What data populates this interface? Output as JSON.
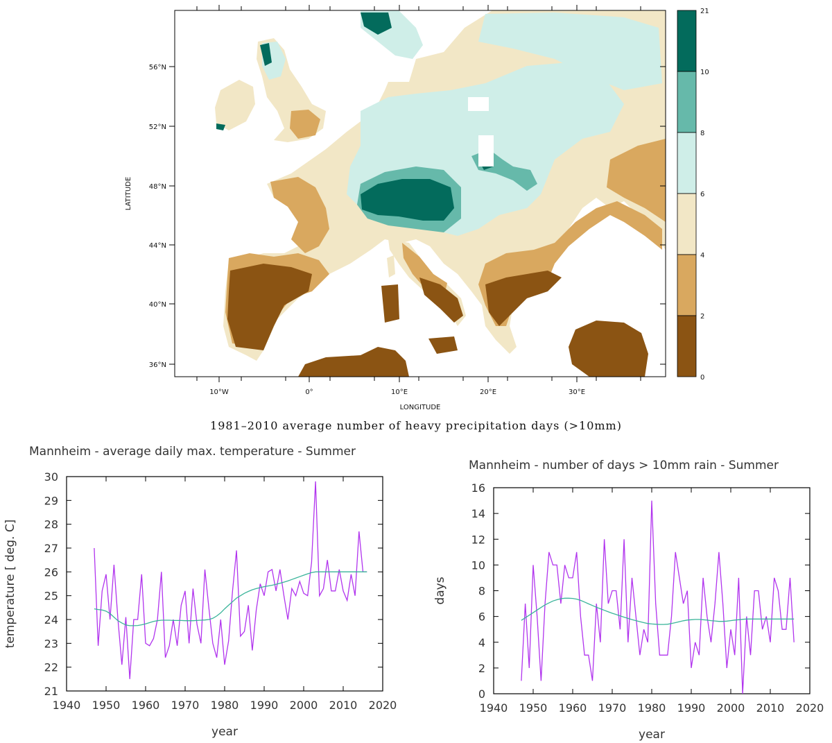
{
  "colors": {
    "dark_brown": "#8b5413",
    "brown": "#d9a85f",
    "cream": "#f2e7c6",
    "pale_teal": "#cfeee8",
    "teal": "#66b9aa",
    "mid_teal": "#2e9c8a",
    "dark_teal": "#036b5c",
    "temp_line": "#b134ee",
    "smooth_line": "#3ab49a"
  },
  "map": {
    "caption": "1981–2010 average number of heavy precipitation days (>10mm)",
    "xlabel": "LONGITUDE",
    "ylabel": "LATITUDE",
    "lat_ticks": [
      "56°N",
      "52°N",
      "48°N",
      "44°N",
      "40°N",
      "36°N"
    ],
    "lon_ticks": [
      "10°W",
      "0°",
      "10°E",
      "20°E",
      "30°E"
    ],
    "colorbar_levels": [
      "21",
      "10",
      "8",
      "6",
      "4",
      "2",
      "0"
    ]
  },
  "chart_data": [
    {
      "type": "line",
      "title": "Mannheim - average daily max. temperature - Summer",
      "xlabel": "year",
      "ylabel": "temperature [ deg. C]",
      "xlim": [
        1940,
        2020
      ],
      "ylim": [
        21,
        30
      ],
      "xticks": [
        "1940",
        "1950",
        "1960",
        "1970",
        "1980",
        "1990",
        "2000",
        "2010",
        "2020"
      ],
      "yticks": [
        "21",
        "22",
        "23",
        "24",
        "25",
        "26",
        "27",
        "28",
        "29",
        "30"
      ],
      "x": [
        1947,
        1948,
        1949,
        1950,
        1951,
        1952,
        1953,
        1954,
        1955,
        1956,
        1957,
        1958,
        1959,
        1960,
        1961,
        1962,
        1963,
        1964,
        1965,
        1966,
        1967,
        1968,
        1969,
        1970,
        1971,
        1972,
        1973,
        1974,
        1975,
        1976,
        1977,
        1978,
        1979,
        1980,
        1981,
        1982,
        1983,
        1984,
        1985,
        1986,
        1987,
        1988,
        1989,
        1990,
        1991,
        1992,
        1993,
        1994,
        1995,
        1996,
        1997,
        1998,
        1999,
        2000,
        2001,
        2002,
        2003,
        2004,
        2005,
        2006,
        2007,
        2008,
        2009,
        2010,
        2011,
        2012,
        2013,
        2014,
        2015,
        2016
      ],
      "series": [
        {
          "name": "Summer average daily max. temperature",
          "values": [
            27.0,
            22.9,
            25.2,
            25.9,
            24.0,
            26.3,
            24.0,
            22.1,
            24.1,
            21.5,
            24.0,
            24.0,
            25.9,
            23.0,
            22.9,
            23.2,
            24.0,
            26.0,
            22.4,
            22.9,
            24.0,
            22.9,
            24.6,
            25.2,
            23.0,
            25.3,
            23.8,
            23.0,
            26.1,
            24.5,
            23.0,
            22.4,
            24.0,
            22.1,
            23.1,
            25.2,
            26.9,
            23.3,
            23.5,
            24.6,
            22.7,
            24.4,
            25.5,
            25.0,
            26.0,
            26.1,
            25.2,
            26.1,
            25.0,
            24.0,
            25.3,
            25.0,
            25.6,
            25.1,
            25.0,
            26.4,
            29.8,
            25.0,
            25.3,
            26.5,
            25.2,
            25.2,
            26.1,
            25.2,
            24.8,
            25.9,
            25.0,
            27.7,
            26.0,
            26.0
          ]
        },
        {
          "name": "smoothed trend",
          "values": [
            24.45,
            24.42,
            24.4,
            24.35,
            24.25,
            24.1,
            23.95,
            23.85,
            23.77,
            23.74,
            23.74,
            23.75,
            23.78,
            23.82,
            23.87,
            23.92,
            23.95,
            23.97,
            23.97,
            23.97,
            23.96,
            23.96,
            23.96,
            23.95,
            23.95,
            23.95,
            23.96,
            23.97,
            23.98,
            24.0,
            24.05,
            24.15,
            24.28,
            24.45,
            24.6,
            24.75,
            24.9,
            25.0,
            25.1,
            25.18,
            25.25,
            25.3,
            25.34,
            25.38,
            25.41,
            25.44,
            25.48,
            25.52,
            25.57,
            25.62,
            25.68,
            25.74,
            25.8,
            25.86,
            25.92,
            25.97,
            26.0,
            26.0,
            26.0,
            26.0,
            26.0,
            26.0,
            26.0,
            26.0,
            26.0,
            26.0,
            26.0,
            26.0,
            26.0,
            26.0
          ]
        }
      ]
    },
    {
      "type": "line",
      "title": "Mannheim - number of days > 10mm rain - Summer",
      "xlabel": "year",
      "ylabel": "days",
      "xlim": [
        1940,
        2020
      ],
      "ylim": [
        0,
        16
      ],
      "xticks": [
        "1940",
        "1950",
        "1960",
        "1970",
        "1980",
        "1990",
        "2000",
        "2010",
        "2020"
      ],
      "yticks": [
        "0",
        "2",
        "4",
        "6",
        "8",
        "10",
        "12",
        "14",
        "16"
      ],
      "x": [
        1947,
        1948,
        1949,
        1950,
        1951,
        1952,
        1953,
        1954,
        1955,
        1956,
        1957,
        1958,
        1959,
        1960,
        1961,
        1962,
        1963,
        1964,
        1965,
        1966,
        1967,
        1968,
        1969,
        1970,
        1971,
        1972,
        1973,
        1974,
        1975,
        1976,
        1977,
        1978,
        1979,
        1980,
        1981,
        1982,
        1983,
        1984,
        1985,
        1986,
        1987,
        1988,
        1989,
        1990,
        1991,
        1992,
        1993,
        1994,
        1995,
        1996,
        1997,
        1998,
        1999,
        2000,
        2001,
        2002,
        2003,
        2004,
        2005,
        2006,
        2007,
        2008,
        2009,
        2010,
        2011,
        2012,
        2013,
        2014,
        2015,
        2016
      ],
      "series": [
        {
          "name": "Summer days > 10mm rain",
          "values": [
            1,
            7,
            2,
            10,
            6,
            1,
            7,
            11,
            10,
            10,
            7,
            10,
            9,
            9,
            11,
            6,
            3,
            3,
            1,
            7,
            4,
            12,
            7,
            8,
            8,
            5,
            12,
            4,
            9,
            6,
            3,
            5,
            4,
            15,
            7,
            3,
            3,
            3,
            6,
            11,
            9,
            7,
            8,
            2,
            4,
            3,
            9,
            6,
            4,
            7,
            11,
            7,
            2,
            5,
            3,
            9,
            0,
            6,
            3,
            8,
            8,
            5,
            6,
            4,
            9,
            8,
            5,
            5,
            9,
            4
          ]
        },
        {
          "name": "smoothed trend",
          "values": [
            5.7,
            5.9,
            6.1,
            6.3,
            6.5,
            6.7,
            6.9,
            7.05,
            7.2,
            7.3,
            7.38,
            7.42,
            7.42,
            7.4,
            7.35,
            7.25,
            7.12,
            6.98,
            6.85,
            6.72,
            6.6,
            6.48,
            6.36,
            6.25,
            6.15,
            6.05,
            5.95,
            5.85,
            5.76,
            5.68,
            5.6,
            5.52,
            5.45,
            5.42,
            5.4,
            5.38,
            5.38,
            5.4,
            5.45,
            5.52,
            5.6,
            5.67,
            5.72,
            5.75,
            5.77,
            5.77,
            5.75,
            5.72,
            5.68,
            5.65,
            5.62,
            5.62,
            5.64,
            5.68,
            5.72,
            5.75,
            5.78,
            5.8,
            5.8,
            5.8,
            5.8,
            5.8,
            5.8,
            5.8,
            5.8,
            5.8,
            5.8,
            5.8,
            5.8,
            5.8
          ]
        }
      ]
    }
  ]
}
